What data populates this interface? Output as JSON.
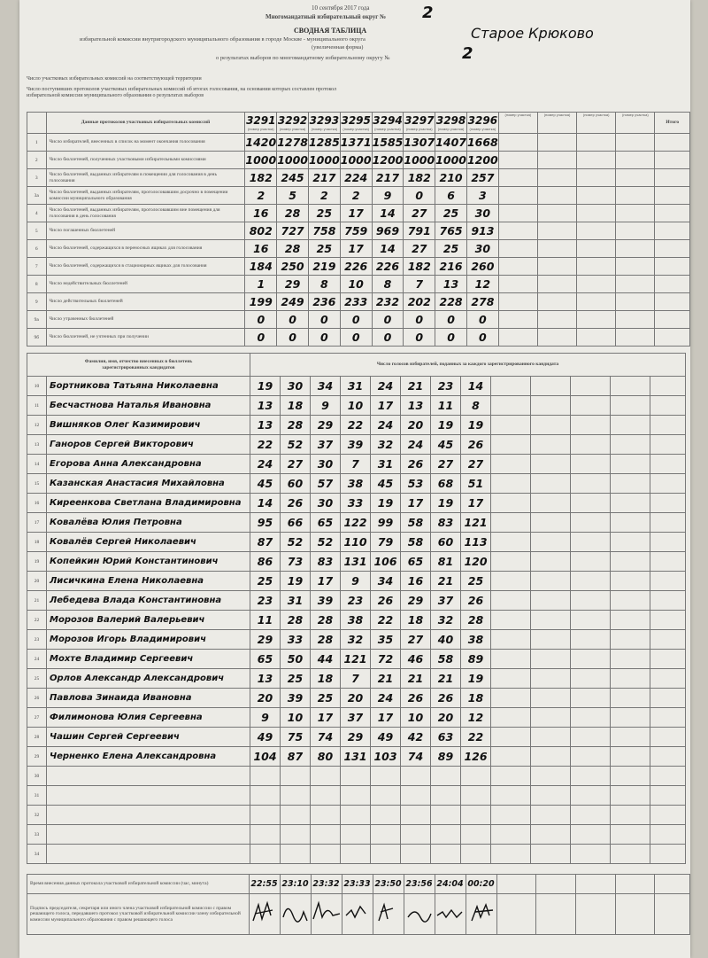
{
  "header": {
    "date": "10 сентября 2017 года",
    "district_label": "Многомандатный избирательный округ №",
    "district_number": "2",
    "title": "СВОДНАЯ ТАБЛИЦА",
    "commission": "избирательной комиссии внутригородского муниципального образования в городе Москве - муниципального округа",
    "municipality": "Старое Крюково",
    "form": "(увеличенная форма)",
    "results_label": "о результатах выборов по многомандатному избирательному округу №",
    "results_number": "2"
  },
  "intro": {
    "commissions_count": "Число участковых избирательных комиссий на соответствующей территории",
    "protocols_count": "Число поступивших протоколов участковых избирательных комиссий об итогах голосования, на основании которых составлен протокол избирательной комиссии муниципального образования о результатах выборов"
  },
  "protocol_table": {
    "heading": "Данные протоколов участковых избирательных комиссий",
    "stations": [
      "3291",
      "3292",
      "3293",
      "3295",
      "3294",
      "3297",
      "3298",
      "3296"
    ],
    "station_caption": "(номер участка)",
    "total_heading": "Итого",
    "rows": [
      {
        "num": "1",
        "label": "Число избирателей, внесенных в список на момент окончания голосования",
        "values": [
          1420,
          1278,
          1285,
          1371,
          1585,
          1307,
          1407,
          1668
        ]
      },
      {
        "num": "2",
        "label": "Число бюллетеней, полученных участковыми избирательными комиссиями",
        "values": [
          1000,
          1000,
          1000,
          1000,
          1200,
          1000,
          1000,
          1200
        ]
      },
      {
        "num": "3",
        "label": "Число бюллетеней, выданных избирателям в помещении для голосования в день голосования",
        "values": [
          182,
          245,
          217,
          224,
          217,
          182,
          210,
          257
        ]
      },
      {
        "num": "3а",
        "label": "Число бюллетеней, выданных избирателям, проголосовавшим досрочно в помещении комиссии муниципального образования",
        "values": [
          2,
          5,
          2,
          2,
          9,
          0,
          6,
          3
        ]
      },
      {
        "num": "4",
        "label": "Число бюллетеней, выданных избирателям, проголосовавшим вне помещения для голосования в день голосования",
        "values": [
          16,
          28,
          25,
          17,
          14,
          27,
          25,
          30
        ]
      },
      {
        "num": "5",
        "label": "Число погашенных бюллетеней",
        "values": [
          802,
          727,
          758,
          759,
          969,
          791,
          765,
          913
        ]
      },
      {
        "num": "6",
        "label": "Число бюллетеней, содержащихся в переносных ящиках для голосования",
        "values": [
          16,
          28,
          25,
          17,
          14,
          27,
          25,
          30
        ]
      },
      {
        "num": "7",
        "label": "Число бюллетеней, содержащихся в стационарных ящиках для голосования",
        "values": [
          184,
          250,
          219,
          226,
          226,
          182,
          216,
          260
        ]
      },
      {
        "num": "8",
        "label": "Число недействительных бюллетеней",
        "values": [
          1,
          29,
          8,
          10,
          8,
          7,
          13,
          12
        ]
      },
      {
        "num": "9",
        "label": "Число действительных бюллетеней",
        "values": [
          199,
          249,
          236,
          233,
          232,
          202,
          228,
          278
        ]
      },
      {
        "num": "9а",
        "label": "Число утраченных бюллетеней",
        "values": [
          0,
          0,
          0,
          0,
          0,
          0,
          0,
          0
        ]
      },
      {
        "num": "9б",
        "label": "Число бюллетеней, не учтенных при получении",
        "values": [
          0,
          0,
          0,
          0,
          0,
          0,
          0,
          0
        ]
      }
    ]
  },
  "candidate_table": {
    "name_heading": "Фамилия, имя, отчество внесенных в бюллетень зарегистрированных кандидатов",
    "votes_heading": "Число голосов избирателей, поданных за каждого зарегистрированного кандидата",
    "rows": [
      {
        "num": "10",
        "name": "Бортникова Татьяна Николаевна",
        "votes": [
          19,
          30,
          34,
          31,
          24,
          21,
          23,
          14
        ]
      },
      {
        "num": "11",
        "name": "Бесчастнова Наталья Ивановна",
        "votes": [
          13,
          18,
          9,
          10,
          17,
          13,
          11,
          8
        ]
      },
      {
        "num": "12",
        "name": "Вишняков Олег Казимирович",
        "votes": [
          13,
          28,
          29,
          22,
          24,
          20,
          19,
          19
        ]
      },
      {
        "num": "13",
        "name": "Ганоров Сергей Викторович",
        "votes": [
          22,
          52,
          37,
          39,
          32,
          24,
          45,
          26
        ]
      },
      {
        "num": "14",
        "name": "Егорова Анна Александровна",
        "votes": [
          24,
          27,
          30,
          7,
          31,
          26,
          27,
          27
        ]
      },
      {
        "num": "15",
        "name": "Казанская Анастасия Михайловна",
        "votes": [
          45,
          60,
          57,
          38,
          45,
          53,
          68,
          51
        ]
      },
      {
        "num": "16",
        "name": "Киреенкова Светлана Владимировна",
        "votes": [
          14,
          26,
          30,
          33,
          19,
          17,
          19,
          17
        ]
      },
      {
        "num": "17",
        "name": "Ковалёва Юлия Петровна",
        "votes": [
          95,
          66,
          65,
          122,
          99,
          58,
          83,
          121
        ]
      },
      {
        "num": "18",
        "name": "Ковалёв Сергей Николаевич",
        "votes": [
          87,
          52,
          52,
          110,
          79,
          58,
          60,
          113
        ]
      },
      {
        "num": "19",
        "name": "Копейкин Юрий Константинович",
        "votes": [
          86,
          73,
          83,
          131,
          106,
          65,
          81,
          120
        ]
      },
      {
        "num": "20",
        "name": "Лисичкина Елена Николаевна",
        "votes": [
          25,
          19,
          17,
          9,
          34,
          16,
          21,
          25
        ]
      },
      {
        "num": "21",
        "name": "Лебедева Влада Константиновна",
        "votes": [
          23,
          31,
          39,
          23,
          26,
          29,
          37,
          26
        ]
      },
      {
        "num": "22",
        "name": "Морозов Валерий Валерьевич",
        "votes": [
          11,
          28,
          28,
          38,
          22,
          18,
          32,
          28
        ]
      },
      {
        "num": "23",
        "name": "Морозов Игорь Владимирович",
        "votes": [
          29,
          33,
          28,
          32,
          35,
          27,
          40,
          38
        ]
      },
      {
        "num": "24",
        "name": "Мохте Владимир Сергеевич",
        "votes": [
          65,
          50,
          44,
          121,
          72,
          46,
          58,
          89
        ]
      },
      {
        "num": "25",
        "name": "Орлов Александр Александрович",
        "votes": [
          13,
          25,
          18,
          7,
          21,
          21,
          21,
          19
        ]
      },
      {
        "num": "26",
        "name": "Павлова Зинаида Ивановна",
        "votes": [
          20,
          39,
          25,
          20,
          24,
          26,
          26,
          18
        ]
      },
      {
        "num": "27",
        "name": "Филимонова Юлия Сергеевна",
        "votes": [
          9,
          10,
          17,
          37,
          17,
          10,
          20,
          12
        ]
      },
      {
        "num": "28",
        "name": "Чашин Сергей Сергеевич",
        "votes": [
          49,
          75,
          74,
          29,
          49,
          42,
          63,
          22
        ]
      },
      {
        "num": "29",
        "name": "Черненко Елена Александровна",
        "votes": [
          104,
          87,
          80,
          131,
          103,
          74,
          89,
          126
        ]
      },
      {
        "num": "30"
      },
      {
        "num": "31"
      },
      {
        "num": "32"
      },
      {
        "num": "33"
      },
      {
        "num": "34"
      }
    ]
  },
  "footer": {
    "time_label": "Время внесения данных протокола участковой избирательной комиссии (час, минута)",
    "times": [
      "22:55",
      "23:10",
      "23:32",
      "23:33",
      "23:50",
      "23:56",
      "24:04",
      "00:20"
    ],
    "signature_label": "Подпись председателя, секретаря или иного члена участковой избирательной комиссии с правом решающего голоса, передавшего протокол участковой избирательной комиссии члену избирательной комиссии муниципального образования с правом решающего голоса"
  }
}
